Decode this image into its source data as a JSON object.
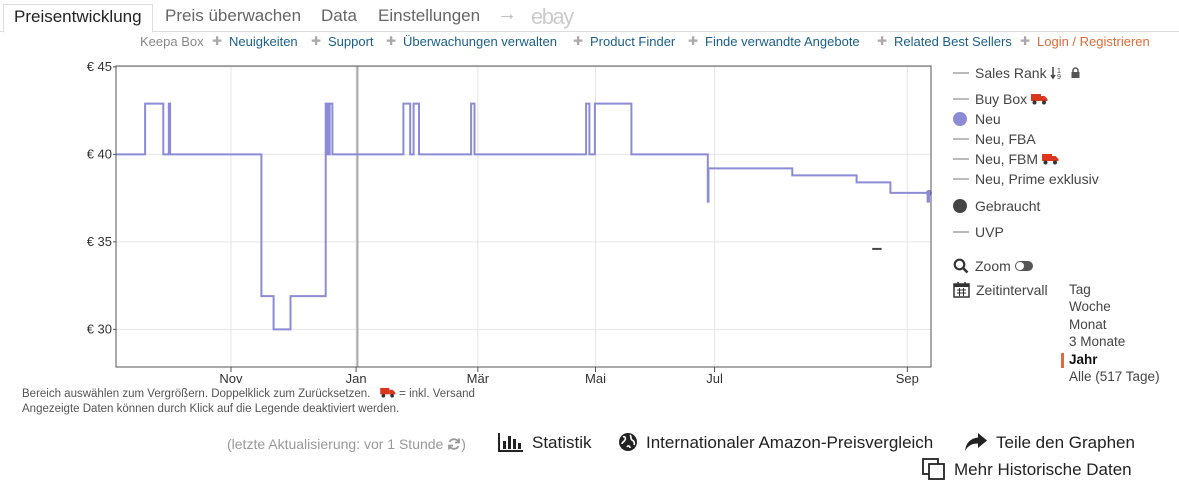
{
  "tabs": [
    {
      "label": "Preisentwicklung",
      "active": true
    },
    {
      "label": "Preis überwachen",
      "active": false
    },
    {
      "label": "Data",
      "active": false
    },
    {
      "label": "Einstellungen",
      "active": false
    }
  ],
  "tab_arrow": "→",
  "tab_ebay": "ebay",
  "subnav": {
    "keepa_box": "Keepa Box",
    "links": [
      "Neuigkeiten",
      "Support",
      "Überwachungen verwalten",
      "Product Finder",
      "Finde verwandte Angebote",
      "Related Best Sellers"
    ],
    "login": "Login / Registrieren",
    "separator": "✚"
  },
  "legend": {
    "items": [
      {
        "label": "Sales Rank",
        "marker": "line",
        "icons": [
          "sort-icon",
          "lock-icon"
        ]
      },
      {
        "label": "Buy Box",
        "marker": "line",
        "icons": [
          "truck-icon"
        ]
      },
      {
        "label": "Neu",
        "marker": "dot",
        "color": "#8c8cd6"
      },
      {
        "label": "Neu, FBA",
        "marker": "line"
      },
      {
        "label": "Neu, FBM",
        "marker": "line",
        "icons": [
          "truck-icon"
        ]
      },
      {
        "label": "Neu, Prime exklusiv",
        "marker": "line"
      },
      {
        "label": "Gebraucht",
        "marker": "dot",
        "color": "#444444"
      },
      {
        "label": "UVP",
        "marker": "line"
      }
    ],
    "zoom_label": "Zoom",
    "interval_label": "Zeitintervall",
    "ranges": [
      "Tag",
      "Woche",
      "Monat",
      "3 Monate",
      "Jahr",
      "Alle (517 Tage)"
    ],
    "active_range": "Jahr"
  },
  "notes": {
    "line1": "Bereich auswählen zum Vergrößern. Doppelklick zum Zurücksetzen.",
    "shipping": "= inkl. Versand",
    "line2": "Angezeigte Daten können durch Klick auf die Legende deaktiviert werden."
  },
  "bottom": {
    "last_update": "(letzte Aktualisierung: vor 1 Stunde",
    "statistik": "Statistik",
    "compare": "Internationaler Amazon-Preisvergleich",
    "share": "Teile den Graphen",
    "more": "Mehr Historische Daten"
  },
  "colors": {
    "accent": "#e06b3a",
    "link": "#1a5f8a",
    "neu": "#8c8cd6",
    "truck": "#d9381e"
  },
  "chart_data": {
    "type": "line",
    "series": [
      {
        "name": "Neu",
        "color": "#8c8cd6",
        "step": true,
        "points": [
          [
            0.0,
            40.0
          ],
          [
            4.3,
            40.0
          ],
          [
            4.3,
            42.9
          ],
          [
            7.0,
            42.9
          ],
          [
            7.0,
            40.0
          ],
          [
            7.8,
            40.0
          ],
          [
            7.8,
            42.9
          ],
          [
            8.0,
            42.9
          ],
          [
            8.0,
            40.0
          ],
          [
            21.5,
            40.0
          ],
          [
            21.5,
            31.9
          ],
          [
            23.3,
            31.9
          ],
          [
            23.3,
            30.0
          ],
          [
            25.8,
            30.0
          ],
          [
            25.8,
            31.9
          ],
          [
            31.0,
            31.9
          ],
          [
            31.0,
            42.9
          ],
          [
            31.3,
            42.9
          ],
          [
            31.3,
            40.0
          ],
          [
            31.6,
            40.0
          ],
          [
            31.6,
            42.9
          ],
          [
            32.0,
            42.9
          ],
          [
            32.0,
            40.0
          ],
          [
            42.5,
            40.0
          ],
          [
            42.5,
            42.9
          ],
          [
            43.5,
            42.9
          ],
          [
            43.5,
            40.0
          ],
          [
            44.0,
            40.0
          ],
          [
            44.0,
            42.9
          ],
          [
            44.8,
            42.9
          ],
          [
            44.8,
            40.0
          ],
          [
            52.5,
            40.0
          ],
          [
            52.5,
            42.9
          ],
          [
            53.0,
            42.9
          ],
          [
            53.0,
            40.0
          ],
          [
            69.5,
            40.0
          ],
          [
            69.5,
            42.9
          ],
          [
            70.0,
            42.9
          ],
          [
            70.0,
            40.0
          ],
          [
            70.8,
            40.0
          ],
          [
            70.8,
            42.9
          ],
          [
            76.2,
            42.9
          ],
          [
            76.2,
            40.0
          ],
          [
            87.5,
            40.0
          ],
          [
            87.5,
            37.3
          ],
          [
            87.6,
            37.3
          ],
          [
            87.6,
            39.2
          ],
          [
            100.0,
            39.2
          ],
          [
            100.0,
            38.8
          ],
          [
            109.5,
            38.8
          ],
          [
            109.5,
            38.4
          ],
          [
            114.5,
            38.4
          ],
          [
            114.5,
            37.8
          ],
          [
            120.0,
            37.8
          ],
          [
            120.0,
            37.3
          ],
          [
            120.2,
            37.3
          ],
          [
            120.2,
            37.8
          ]
        ]
      },
      {
        "name": "Gebraucht",
        "color": "#444444",
        "points": [
          [
            111.8,
            34.6
          ],
          [
            113.2,
            34.6
          ]
        ]
      }
    ],
    "x_domain_weeks": [
      0,
      120.5
    ],
    "x_ticks": [
      {
        "label": "Nov",
        "week": 17
      },
      {
        "label": "Jan",
        "week": 35.5
      },
      {
        "label": "Mär",
        "week": 53.5
      },
      {
        "label": "Mai",
        "week": 70.9
      },
      {
        "label": "Jul",
        "week": 88.5
      },
      {
        "label": "Sep",
        "week": 117
      }
    ],
    "marker_week": 35.7,
    "y_ticks": [
      {
        "label": "€ 45",
        "value": 45
      },
      {
        "label": "€ 40",
        "value": 40
      },
      {
        "label": "€ 35",
        "value": 35
      },
      {
        "label": "€ 30",
        "value": 30
      }
    ],
    "ylim": [
      27.85,
      45.05
    ],
    "grid": true
  }
}
